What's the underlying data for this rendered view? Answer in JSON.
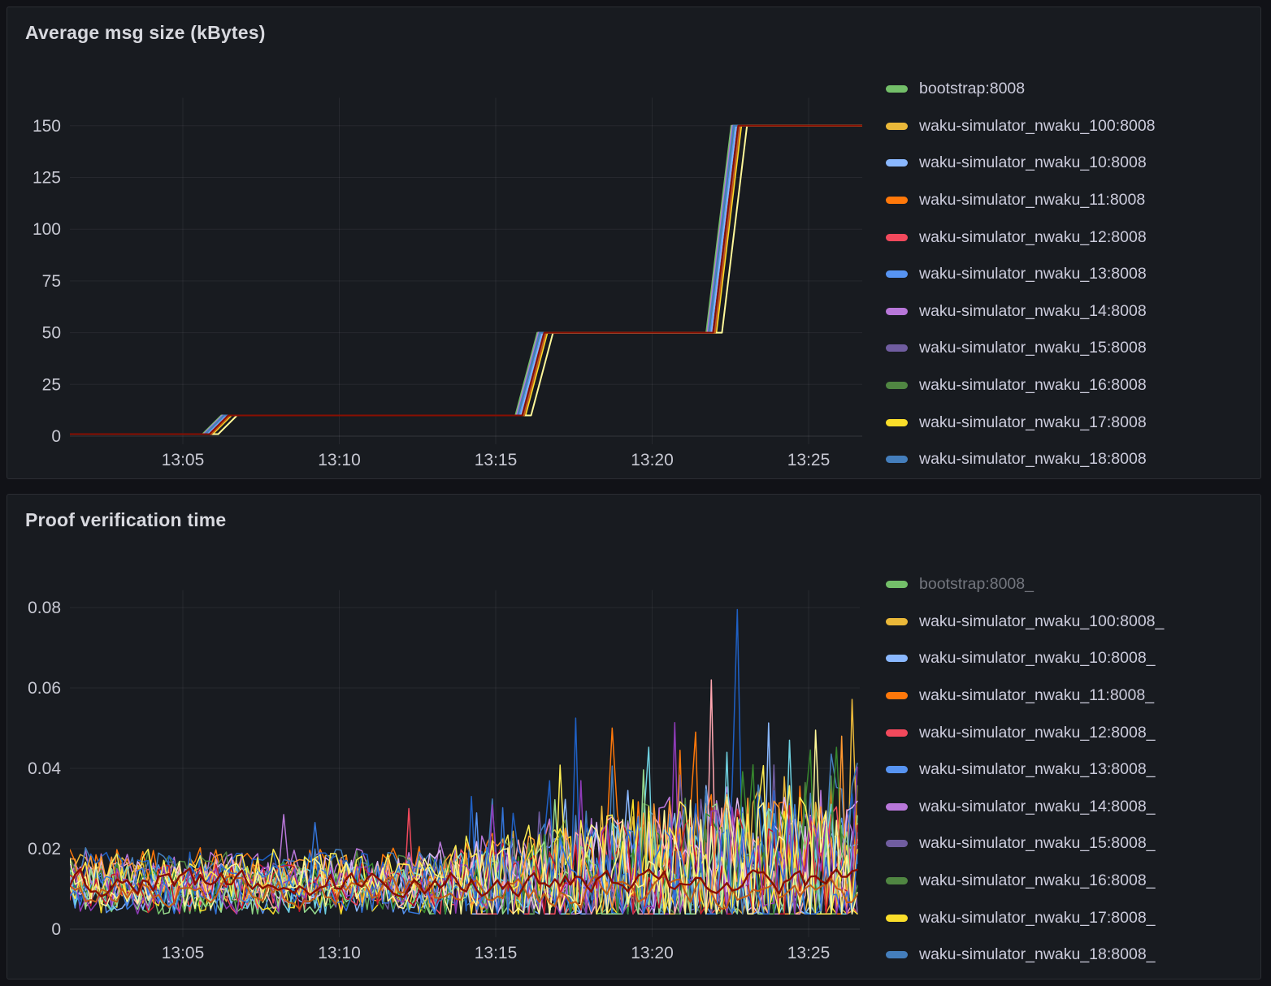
{
  "theme": {
    "page_bg": "#111217",
    "panel_bg": "#181B20",
    "panel_border": "#2B2D33",
    "title_text": "#D8D9DF",
    "axis_text": "#C8C9D3",
    "legend_text": "#CCCCDC",
    "legend_text_dimmed": "#73767E",
    "grid_line": "rgba(204,204,220,0.08)",
    "zero_line": "rgba(204,204,220,0.16)"
  },
  "chart_data": [
    {
      "type": "line",
      "title": "Average msg size (kBytes)",
      "legend_position": "right",
      "grid": true,
      "xlabel": "",
      "ylabel": "",
      "x_ticks": [
        {
          "minutes_after_13h": 5,
          "label": "13:05"
        },
        {
          "minutes_after_13h": 10,
          "label": "13:10"
        },
        {
          "minutes_after_13h": 15,
          "label": "13:15"
        },
        {
          "minutes_after_13h": 20,
          "label": "13:20"
        },
        {
          "minutes_after_13h": 25,
          "label": "13:25"
        }
      ],
      "x_range_minutes_after_13h": [
        1.39,
        26.71
      ],
      "y_ticks": [
        0,
        25,
        50,
        75,
        100,
        125,
        150
      ],
      "ylim": [
        0,
        158
      ],
      "step_profile_shared_by_all_series": [
        {
          "t": 1.39,
          "v": 1
        },
        {
          "t": 5.85,
          "v": 1
        },
        {
          "t": 6.45,
          "v": 10
        },
        {
          "t": 15.85,
          "v": 10
        },
        {
          "t": 16.55,
          "v": 50
        },
        {
          "t": 21.95,
          "v": 50
        },
        {
          "t": 22.75,
          "v": 150
        },
        {
          "t": 26.71,
          "v": 150
        }
      ],
      "series": [
        {
          "name": "bootstrap:8008",
          "color": "#73BF69",
          "t_offset": -0.22
        },
        {
          "name": "waku-simulator_nwaku_100:8008",
          "color": "#EAB839",
          "t_offset": 0.02
        },
        {
          "name": "waku-simulator_nwaku_10:8008",
          "color": "#8AB8FF",
          "t_offset": -0.06
        },
        {
          "name": "waku-simulator_nwaku_11:8008",
          "color": "#FF780A",
          "t_offset": 0.05
        },
        {
          "name": "waku-simulator_nwaku_12:8008",
          "color": "#F2495C",
          "t_offset": 0.0
        },
        {
          "name": "waku-simulator_nwaku_13:8008",
          "color": "#5794F2",
          "t_offset": -0.1
        },
        {
          "name": "waku-simulator_nwaku_14:8008",
          "color": "#B877D9",
          "t_offset": -0.18
        },
        {
          "name": "waku-simulator_nwaku_15:8008",
          "color": "#705DA0",
          "t_offset": 0.03
        },
        {
          "name": "waku-simulator_nwaku_16:8008",
          "color": "#508642",
          "t_offset": -0.14
        },
        {
          "name": "waku-simulator_nwaku_17:8008",
          "color": "#FADE2A",
          "t_offset": 0.1
        },
        {
          "name": "waku-simulator_nwaku_18:8008",
          "color": "#447EBC",
          "t_offset": -0.15
        }
      ],
      "unlabeled_series": [
        {
          "color": "#FFF899",
          "t_offset": 0.28
        },
        {
          "color": "#C15C17",
          "t_offset": 0.06
        },
        {
          "color": "#890F02",
          "t_offset": 0.0
        }
      ]
    },
    {
      "type": "line",
      "title": "Proof verification time",
      "legend_position": "right",
      "grid": true,
      "xlabel": "",
      "ylabel": "",
      "x_ticks": [
        {
          "minutes_after_13h": 5,
          "label": "13:05"
        },
        {
          "minutes_after_13h": 10,
          "label": "13:10"
        },
        {
          "minutes_after_13h": 15,
          "label": "13:15"
        },
        {
          "minutes_after_13h": 20,
          "label": "13:20"
        },
        {
          "minutes_after_13h": 25,
          "label": "13:25"
        }
      ],
      "x_range_minutes_after_13h": [
        1.39,
        26.64
      ],
      "y_ticks": [
        0,
        0.02,
        0.04,
        0.06,
        0.08
      ],
      "ylim": [
        0,
        0.0815
      ],
      "sample_interval_seconds": 10,
      "value_pattern": {
        "baseline_range": [
          0.008,
          0.013
        ],
        "noise_amplitude_early": 0.006,
        "noise_amplitude_late": 0.019,
        "amplitude_ramp_minutes": [
          12,
          22
        ],
        "min_value": 0.0038
      },
      "notable_spikes": [
        {
          "color": "#1F60C4",
          "t": 22.7,
          "v": 0.0795
        },
        {
          "color": "#FFA6B0",
          "t": 21.95,
          "v": 0.062
        },
        {
          "color": "#1F60C4",
          "t": 17.5,
          "v": 0.0525
        },
        {
          "color": "#FF780A",
          "t": 21.45,
          "v": 0.049
        },
        {
          "color": "#FF780A",
          "t": 20.95,
          "v": 0.0445
        },
        {
          "color": "#FFF899",
          "t": 25.2,
          "v": 0.0495
        },
        {
          "color": "#8AB8FF",
          "t": 23.75,
          "v": 0.0513
        },
        {
          "color": "#FF9830",
          "t": 26.1,
          "v": 0.048
        },
        {
          "color": "#6ED0E0",
          "t": 24.4,
          "v": 0.047
        },
        {
          "color": "#B877D9",
          "t": 8.2,
          "v": 0.0285
        },
        {
          "color": "#F2495C",
          "t": 12.3,
          "v": 0.03
        },
        {
          "color": "#3274D9",
          "t": 9.3,
          "v": 0.0265
        },
        {
          "color": "#1F60C4",
          "t": 14.2,
          "v": 0.033
        }
      ],
      "series": [
        {
          "name": "bootstrap:8008_",
          "color": "#73BF69",
          "seed": 101,
          "dimmed": true
        },
        {
          "name": "waku-simulator_nwaku_100:8008_",
          "color": "#EAB839",
          "seed": 102
        },
        {
          "name": "waku-simulator_nwaku_10:8008_",
          "color": "#8AB8FF",
          "seed": 103
        },
        {
          "name": "waku-simulator_nwaku_11:8008_",
          "color": "#FF780A",
          "seed": 104
        },
        {
          "name": "waku-simulator_nwaku_12:8008_",
          "color": "#F2495C",
          "seed": 105
        },
        {
          "name": "waku-simulator_nwaku_13:8008_",
          "color": "#5794F2",
          "seed": 106
        },
        {
          "name": "waku-simulator_nwaku_14:8008_",
          "color": "#B877D9",
          "seed": 107
        },
        {
          "name": "waku-simulator_nwaku_15:8008_",
          "color": "#705DA0",
          "seed": 108
        },
        {
          "name": "waku-simulator_nwaku_16:8008_",
          "color": "#508642",
          "seed": 109
        },
        {
          "name": "waku-simulator_nwaku_17:8008_",
          "color": "#FADE2A",
          "seed": 110
        },
        {
          "name": "waku-simulator_nwaku_18:8008_",
          "color": "#447EBC",
          "seed": 111
        }
      ],
      "unlabeled_series": [
        {
          "color": "#FFA6B0",
          "seed": 201
        },
        {
          "color": "#6ED0E0",
          "seed": 202
        },
        {
          "color": "#1F60C4",
          "seed": 203
        },
        {
          "color": "#DEB6F2",
          "seed": 204
        },
        {
          "color": "#37872D",
          "seed": 205
        },
        {
          "color": "#FF9830",
          "seed": 206
        },
        {
          "color": "#96D98D",
          "seed": 207
        },
        {
          "color": "#C4162A",
          "seed": 208
        },
        {
          "color": "#8F3BB8",
          "seed": 209
        },
        {
          "color": "#FFEE52",
          "seed": 210
        },
        {
          "color": "#3274D9",
          "seed": 211
        },
        {
          "color": "#FFF899",
          "seed": 212
        },
        {
          "color": "#C15C17",
          "seed": 213,
          "emphasis": "secondary"
        },
        {
          "color": "#890F02",
          "seed": 214,
          "emphasis": "primary"
        }
      ]
    }
  ]
}
